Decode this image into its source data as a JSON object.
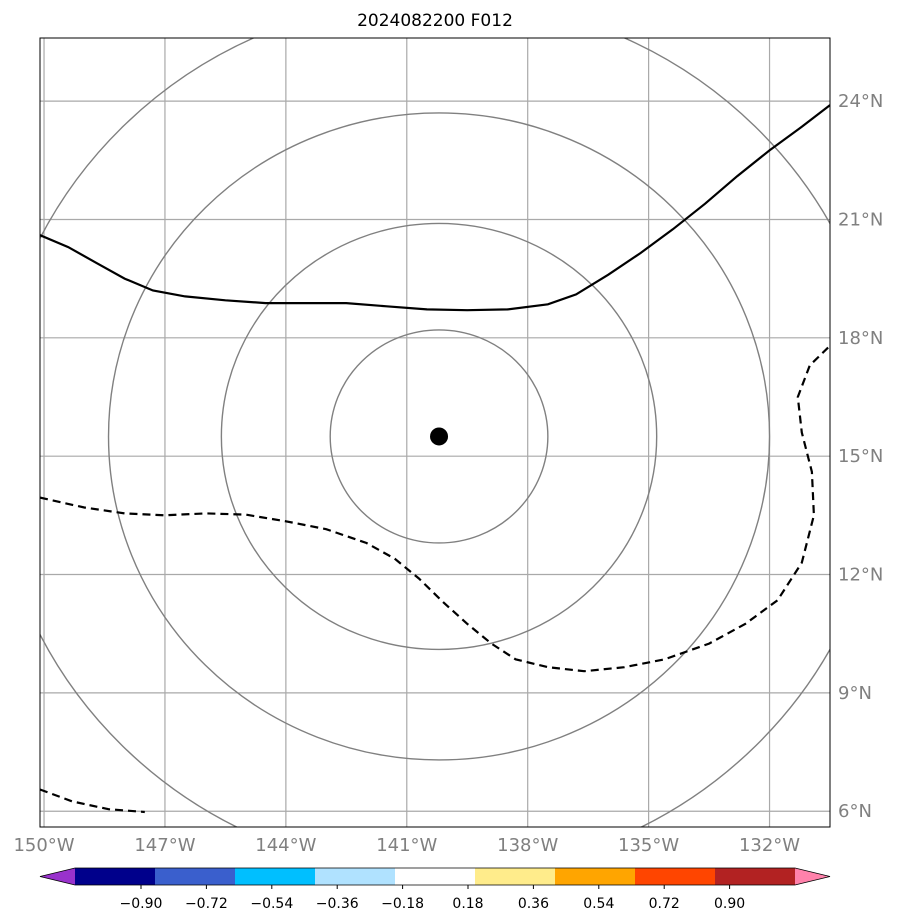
{
  "title": "2024082200 F012",
  "map": {
    "lon_range": [
      -150.1,
      -130.5
    ],
    "lat_range": [
      5.6,
      25.6
    ],
    "lon_ticks": [
      {
        "value": -150,
        "label": "150°W"
      },
      {
        "value": -147,
        "label": "147°W"
      },
      {
        "value": -144,
        "label": "144°W"
      },
      {
        "value": -141,
        "label": "141°W"
      },
      {
        "value": -138,
        "label": "138°W"
      },
      {
        "value": -135,
        "label": "135°W"
      },
      {
        "value": -132,
        "label": "132°W"
      }
    ],
    "lat_ticks": [
      {
        "value": 6,
        "label": "6°N"
      },
      {
        "value": 9,
        "label": "9°N"
      },
      {
        "value": 12,
        "label": "12°N"
      },
      {
        "value": 15,
        "label": "15°N"
      },
      {
        "value": 18,
        "label": "18°N"
      },
      {
        "value": 21,
        "label": "21°N"
      },
      {
        "value": 24,
        "label": "24°N"
      }
    ],
    "storm_center": {
      "lon": -140.2,
      "lat": 15.5
    },
    "range_rings_deg": [
      2.7,
      5.4,
      8.2,
      11.1
    ],
    "contour_solid": [
      [
        -150.1,
        20.6
      ],
      [
        -149.4,
        20.3
      ],
      [
        -148.7,
        19.9
      ],
      [
        -148.0,
        19.5
      ],
      [
        -147.3,
        19.2
      ],
      [
        -146.5,
        19.05
      ],
      [
        -145.5,
        18.95
      ],
      [
        -144.5,
        18.88
      ],
      [
        -143.5,
        18.88
      ],
      [
        -142.5,
        18.88
      ],
      [
        -141.5,
        18.8
      ],
      [
        -140.5,
        18.72
      ],
      [
        -139.5,
        18.7
      ],
      [
        -138.5,
        18.72
      ],
      [
        -137.5,
        18.85
      ],
      [
        -136.8,
        19.1
      ],
      [
        -136.0,
        19.6
      ],
      [
        -135.2,
        20.15
      ],
      [
        -134.4,
        20.75
      ],
      [
        -133.6,
        21.4
      ],
      [
        -132.8,
        22.1
      ],
      [
        -132.0,
        22.75
      ],
      [
        -131.2,
        23.35
      ],
      [
        -130.5,
        23.9
      ]
    ],
    "contour_dashed_1": [
      [
        -150.1,
        13.95
      ],
      [
        -149.0,
        13.7
      ],
      [
        -148.0,
        13.55
      ],
      [
        -147.0,
        13.5
      ],
      [
        -146.0,
        13.55
      ],
      [
        -145.0,
        13.52
      ],
      [
        -144.0,
        13.35
      ],
      [
        -143.0,
        13.15
      ],
      [
        -142.0,
        12.8
      ],
      [
        -141.3,
        12.4
      ],
      [
        -140.7,
        11.9
      ],
      [
        -140.1,
        11.3
      ],
      [
        -139.5,
        10.75
      ],
      [
        -138.9,
        10.25
      ],
      [
        -138.3,
        9.85
      ],
      [
        -137.5,
        9.65
      ],
      [
        -136.6,
        9.55
      ],
      [
        -135.6,
        9.65
      ],
      [
        -134.6,
        9.85
      ],
      [
        -133.5,
        10.25
      ],
      [
        -132.6,
        10.75
      ],
      [
        -131.8,
        11.35
      ],
      [
        -131.2,
        12.3
      ],
      [
        -130.9,
        13.5
      ],
      [
        -130.95,
        14.6
      ],
      [
        -131.2,
        15.6
      ],
      [
        -131.3,
        16.5
      ],
      [
        -131.0,
        17.3
      ],
      [
        -130.5,
        17.8
      ]
    ],
    "contour_dashed_2": [
      [
        -150.1,
        6.55
      ],
      [
        -149.3,
        6.25
      ],
      [
        -148.4,
        6.05
      ],
      [
        -147.5,
        5.98
      ]
    ]
  },
  "colorbar": {
    "colors": [
      "#9932cc",
      "#00008b",
      "#3a5fcd",
      "#00bfff",
      "#b0e2ff",
      "#ffffff",
      "#ffec8b",
      "#ffa500",
      "#ff4500",
      "#b22222",
      "#ff82ab"
    ],
    "labels": [
      "−0.90",
      "−0.72",
      "−0.54",
      "−0.36",
      "−0.18",
      "0.18",
      "0.36",
      "0.54",
      "0.72",
      "0.90"
    ]
  }
}
